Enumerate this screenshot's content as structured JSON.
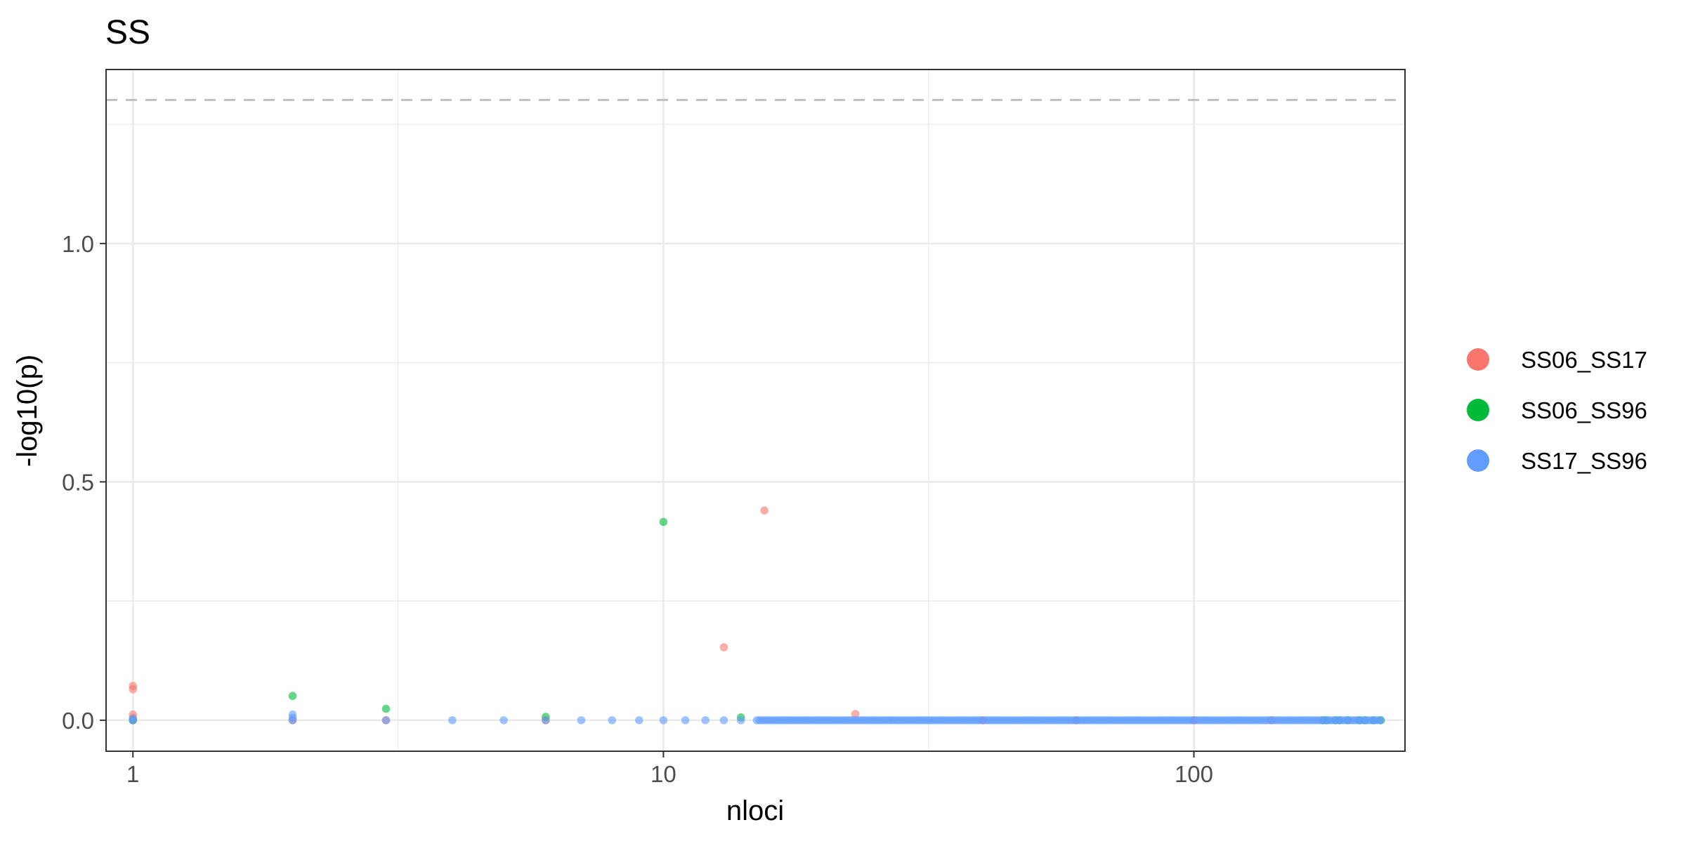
{
  "chart_data": {
    "type": "scatter",
    "title": "SS",
    "xlabel": "nloci",
    "ylabel": "-log10(p)",
    "x_scale": "log10",
    "xlim": [
      0.89,
      250
    ],
    "ylim": [
      -0.065,
      1.365
    ],
    "x_ticks": [
      1,
      10,
      100
    ],
    "y_ticks": [
      0.0,
      0.5,
      1.0
    ],
    "x_tick_labels": [
      "1",
      "10",
      "100"
    ],
    "y_tick_labels": [
      "0.0",
      "0.5",
      "1.0"
    ],
    "x_minor_gridlines": [
      3.16,
      31.6
    ],
    "y_minor_gridlines": [
      0.25,
      0.75,
      1.25
    ],
    "reference_line": {
      "y": 1.30103,
      "style": "dashed",
      "color": "#bfbfbf"
    },
    "grid": true,
    "legend_position": "right",
    "series": [
      {
        "name": "SS06_SS17",
        "color": "#F8766D",
        "points": [
          [
            1,
            0.072
          ],
          [
            1,
            0.065
          ],
          [
            1,
            0.012
          ],
          [
            1,
            0.005
          ],
          [
            1,
            0.0
          ],
          [
            2,
            0.0
          ],
          [
            3,
            0.0
          ],
          [
            6,
            0.0
          ],
          [
            13,
            0.153
          ],
          [
            15.5,
            0.44
          ],
          [
            23,
            0.013
          ],
          [
            40,
            0.0
          ],
          [
            60,
            0.0
          ],
          [
            100,
            0.0
          ],
          [
            140,
            0.0
          ]
        ]
      },
      {
        "name": "SS06_SS96",
        "color": "#00BA38",
        "points": [
          [
            1,
            0.0
          ],
          [
            2,
            0.051
          ],
          [
            3,
            0.024
          ],
          [
            6,
            0.007
          ],
          [
            10,
            0.416
          ],
          [
            14,
            0.006
          ],
          [
            175,
            0.0
          ],
          [
            178,
            0.0
          ],
          [
            185,
            0.0
          ],
          [
            188,
            0.0
          ],
          [
            195,
            0.0
          ],
          [
            205,
            0.0
          ],
          [
            210,
            0.0
          ],
          [
            218,
            0.0
          ],
          [
            225,
            0.0
          ]
        ]
      },
      {
        "name": "SS17_SS96",
        "color": "#619CFF",
        "points": [
          [
            1,
            0.003
          ],
          [
            1,
            0.0
          ],
          [
            2,
            0.012
          ],
          [
            2,
            0.005
          ],
          [
            2,
            0.0
          ],
          [
            3,
            0.0
          ],
          [
            4,
            0.0
          ],
          [
            5,
            0.0
          ],
          [
            6,
            0.0
          ],
          [
            7,
            0.0
          ],
          [
            8,
            0.0
          ],
          [
            9,
            0.0
          ],
          [
            10,
            0.0
          ],
          [
            11,
            0.0
          ],
          [
            12,
            0.0
          ],
          [
            13,
            0.0
          ],
          [
            14,
            0.0
          ]
        ],
        "dense_range": {
          "x_from": 15,
          "x_to": 225,
          "y": 0.0
        }
      }
    ]
  }
}
